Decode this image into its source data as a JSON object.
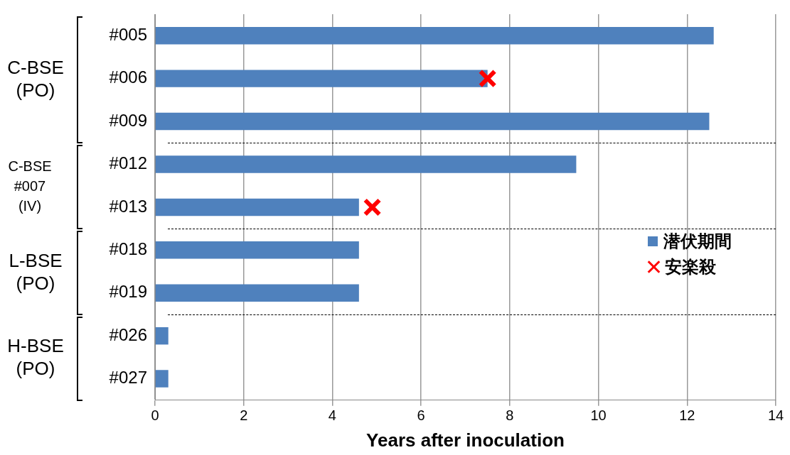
{
  "chart_data": {
    "type": "bar",
    "orientation": "horizontal",
    "xlabel": "Years after inoculation",
    "categories": [
      "#005",
      "#006",
      "#009",
      "#012",
      "#013",
      "#018",
      "#019",
      "#026",
      "#027"
    ],
    "series": [
      {
        "name": "潜伏期間",
        "color": "#4f81bd",
        "values": [
          12.6,
          7.5,
          12.5,
          9.5,
          4.6,
          4.6,
          4.6,
          0.3,
          0.3
        ]
      },
      {
        "name": "安楽殺",
        "type": "scatter",
        "color": "#ff0000",
        "marker": "cross",
        "x": [
          "#006",
          "#013"
        ],
        "values": [
          7.5,
          4.9
        ]
      }
    ],
    "xlim": [
      0,
      14
    ],
    "xticks": [
      0,
      2,
      4,
      6,
      8,
      10,
      12,
      14
    ],
    "grid": "x",
    "legend": "right",
    "annotations": [
      "C-BSE\n(PO)",
      "C-BSE\n#007\n(IV)",
      "L-BSE\n(PO)",
      "H-BSE\n(PO)"
    ]
  }
}
